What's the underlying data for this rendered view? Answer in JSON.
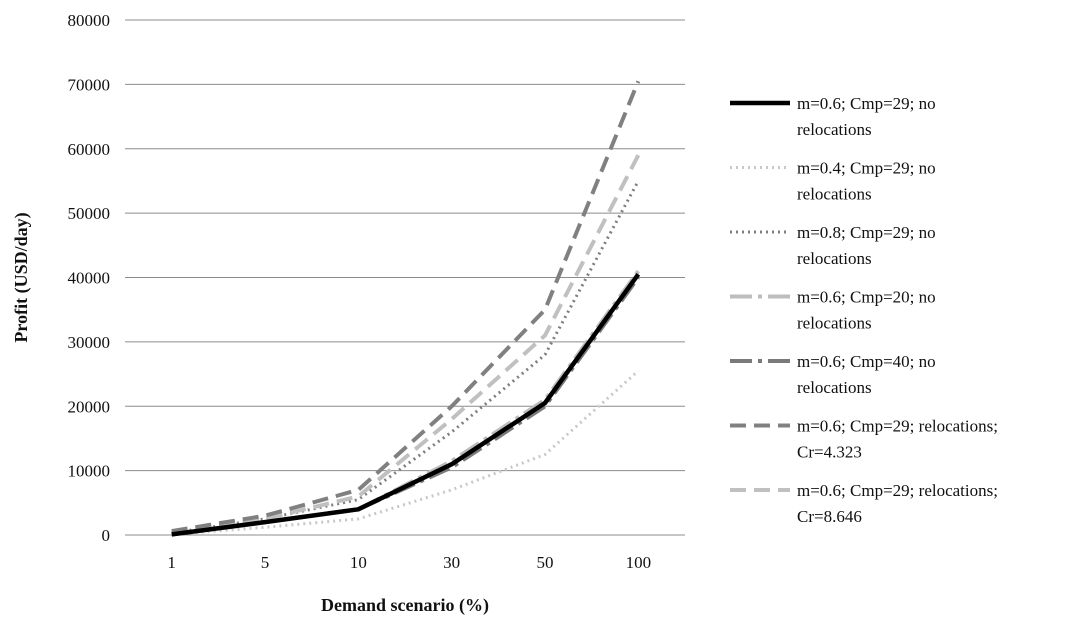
{
  "chart_data": {
    "type": "line",
    "title": "",
    "xlabel": "Demand scenario (%)",
    "ylabel": "Profit (USD/day)",
    "categories": [
      "1",
      "5",
      "10",
      "30",
      "50",
      "100"
    ],
    "ylim": [
      0,
      80000
    ],
    "yticks": [
      0,
      10000,
      20000,
      30000,
      40000,
      50000,
      60000,
      70000,
      80000
    ],
    "grid": "horizontal",
    "legend_position": "right",
    "series": [
      {
        "name": "m=0.6; Cmp=29; no relocations",
        "legend_lines": [
          "m=0.6; Cmp=29; no",
          "relocations"
        ],
        "values": [
          100,
          2000,
          4000,
          11000,
          20500,
          40500
        ],
        "color": "#000000",
        "style": "solid-thick"
      },
      {
        "name": "m=0.4; Cmp=29; no relocations",
        "legend_lines": [
          "m=0.4; Cmp=29; no",
          "relocations"
        ],
        "values": [
          100,
          1200,
          2500,
          7000,
          12500,
          25500
        ],
        "color": "#c8c8c8",
        "style": "dotted"
      },
      {
        "name": "m=0.8; Cmp=29; no relocations",
        "legend_lines": [
          "m=0.8; Cmp=29; no",
          "relocations"
        ],
        "values": [
          300,
          2500,
          5500,
          16000,
          28000,
          55000
        ],
        "color": "#7f7f7f",
        "style": "dotted"
      },
      {
        "name": "m=0.6; Cmp=20; no relocations",
        "legend_lines": [
          "m=0.6; Cmp=20; no",
          "relocations"
        ],
        "values": [
          100,
          2000,
          4000,
          11500,
          21000,
          41000
        ],
        "color": "#bdbdbd",
        "style": "long-dash-dot"
      },
      {
        "name": "m=0.6; Cmp=40; no relocations",
        "legend_lines": [
          "m=0.6; Cmp=40; no",
          "relocations"
        ],
        "values": [
          100,
          2000,
          4000,
          10500,
          20000,
          40000
        ],
        "color": "#7a7a7a",
        "style": "long-dash-dot"
      },
      {
        "name": "m=0.6; Cmp=29; relocations; Cr=4.323",
        "legend_lines": [
          "m=0.6; Cmp=29; relocations;",
          "Cr=4.323"
        ],
        "values": [
          600,
          3000,
          7000,
          20000,
          35000,
          70500
        ],
        "color": "#808080",
        "style": "dashed"
      },
      {
        "name": "m=0.6; Cmp=29; relocations; Cr=8.646",
        "legend_lines": [
          "m=0.6; Cmp=29; relocations;",
          "Cr=8.646"
        ],
        "values": [
          500,
          2500,
          6000,
          18000,
          31000,
          59000
        ],
        "color": "#c0c0c0",
        "style": "dashed"
      }
    ]
  }
}
